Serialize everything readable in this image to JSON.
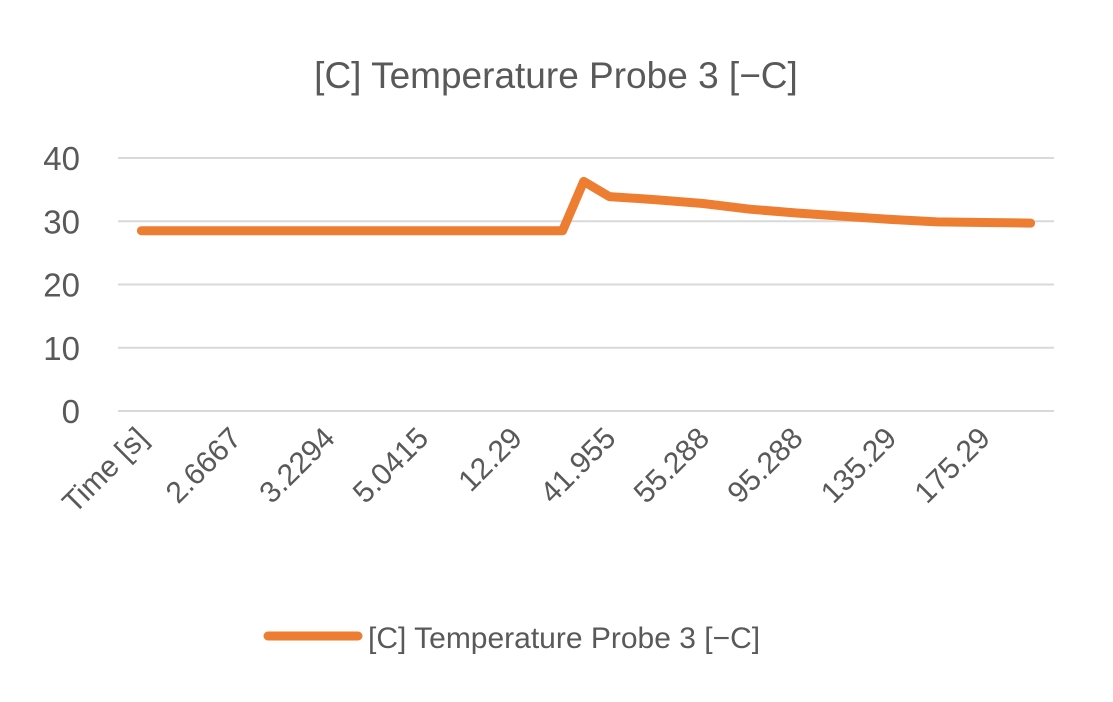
{
  "chart_data": {
    "type": "line",
    "title": "[C] Temperature Probe 3 [−C]",
    "xlabel": "",
    "ylabel": "",
    "ylim": [
      0,
      40
    ],
    "yticks": [
      0,
      10,
      20,
      30,
      40
    ],
    "xticks_shown": [
      "Time [s]",
      "2.6667",
      "3.2294",
      "5.0415",
      "12.29",
      "41.955",
      "55.288",
      "95.288",
      "135.29",
      "175.29"
    ],
    "x": [
      "Time [s]",
      "",
      "2.6667",
      "",
      "3.2294",
      "",
      "5.0415",
      "",
      "12.29",
      "",
      "41.955",
      "",
      "55.288",
      "",
      "95.288",
      "",
      "135.29",
      "",
      "175.29",
      ""
    ],
    "series": [
      {
        "name": "[C] Temperature Probe 3 [−C]",
        "color": "#ED7D31",
        "values": [
          28.5,
          28.5,
          28.5,
          28.5,
          28.5,
          28.5,
          28.5,
          28.5,
          28.5,
          28.5,
          33.9,
          33.4,
          32.8,
          31.9,
          31.3,
          30.8,
          30.3,
          29.9,
          29.8,
          29.7
        ]
      }
    ],
    "peak_value": 36.3,
    "grid": true,
    "legend_position": "bottom"
  }
}
